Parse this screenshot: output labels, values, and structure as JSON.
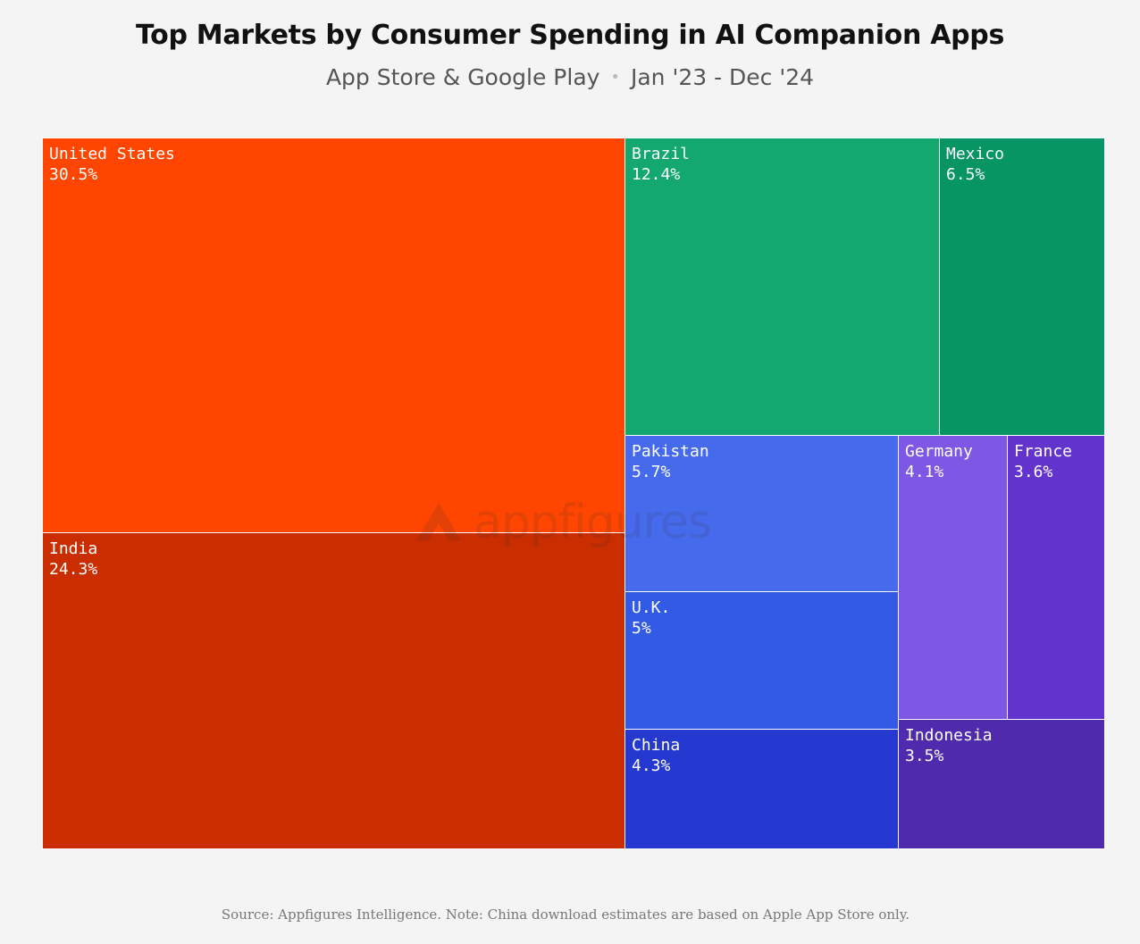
{
  "header": {
    "title": "Top Markets by Consumer Spending in AI Companion Apps",
    "subtitle_left": "App Store & Google Play",
    "subtitle_sep": "•",
    "subtitle_right": "Jan '23 - Dec '24"
  },
  "watermark": {
    "text": "appfigures"
  },
  "footer": {
    "text": "Source: Appfigures Intelligence.  Note: China download estimates are based on Apple App Store only."
  },
  "chart_data": {
    "type": "treemap",
    "title": "Top Markets by Consumer Spending in AI Companion Apps",
    "subtitle": "App Store & Google Play • Jan '23 - Dec '24",
    "unit": "% of consumer spending",
    "items": [
      {
        "name": "United States",
        "value": 30.5,
        "label": "30.5%",
        "color": "#ff4500"
      },
      {
        "name": "India",
        "value": 24.3,
        "label": "24.3%",
        "color": "#c92d00"
      },
      {
        "name": "Brazil",
        "value": 12.4,
        "label": "12.4%",
        "color": "#12a86f"
      },
      {
        "name": "Mexico",
        "value": 6.5,
        "label": "6.5%",
        "color": "#069563"
      },
      {
        "name": "Pakistan",
        "value": 5.7,
        "label": "5.7%",
        "color": "#466aec"
      },
      {
        "name": "U.K.",
        "value": 5,
        "label": "5%",
        "color": "#325ae4"
      },
      {
        "name": "China",
        "value": 4.3,
        "label": "4.3%",
        "color": "#2539d0"
      },
      {
        "name": "Germany",
        "value": 4.1,
        "label": "4.1%",
        "color": "#7e58e4"
      },
      {
        "name": "France",
        "value": 3.6,
        "label": "3.6%",
        "color": "#6333cd"
      },
      {
        "name": "Indonesia",
        "value": 3.5,
        "label": "3.5%",
        "color": "#4f2aad"
      }
    ]
  }
}
